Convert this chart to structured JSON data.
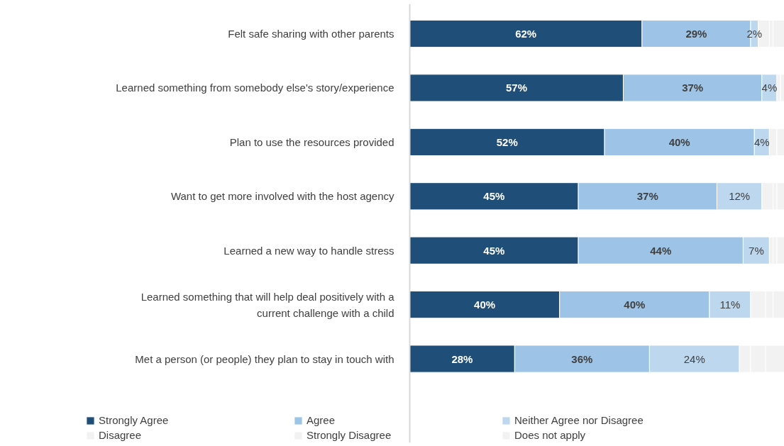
{
  "chart_data": {
    "type": "bar",
    "orientation": "horizontal",
    "stacked": true,
    "legend": "bottom",
    "tick_labels": "y",
    "categories": [
      "Felt safe sharing with other parents",
      "Learned something from somebody else's story/experience",
      "Plan to use the resources provided",
      "Want to get more involved with the host agency",
      "Learned a new way to handle stress",
      "Learned something that will help deal positively with a current challenge with a child",
      "Met a person (or people) they plan to stay in touch with"
    ],
    "series": [
      {
        "name": "Strongly Agree",
        "color": "#1f4e79",
        "values": [
          62,
          57,
          52,
          45,
          45,
          40,
          28
        ],
        "value_labels": [
          "62%",
          "57%",
          "52%",
          "45%",
          "45%",
          "40%",
          "28%"
        ]
      },
      {
        "name": "Agree",
        "color": "#9dc3e6",
        "values": [
          29,
          37,
          40,
          37,
          44,
          40,
          36
        ],
        "value_labels": [
          "29%",
          "37%",
          "40%",
          "37%",
          "44%",
          "40%",
          "36%"
        ]
      },
      {
        "name": "Neither Agree nor Disagree",
        "color": "#bdd7ee",
        "values": [
          2,
          4,
          4,
          12,
          7,
          11,
          24
        ],
        "value_labels": [
          "2%",
          "4%",
          "4%",
          "12%",
          "7%",
          "11%",
          "24%"
        ]
      },
      {
        "name": "Disagree",
        "color": "#f2f2f2",
        "values": [
          3,
          1,
          2,
          3,
          1,
          4,
          3
        ]
      },
      {
        "name": "Strongly Disagree",
        "color": "#f2f2f2",
        "values": [
          1,
          0,
          0,
          1,
          1,
          2,
          4
        ]
      },
      {
        "name": "Does not apply",
        "color": "#f2f2f2",
        "values": [
          3,
          1,
          2,
          2,
          2,
          3,
          5
        ]
      }
    ]
  }
}
